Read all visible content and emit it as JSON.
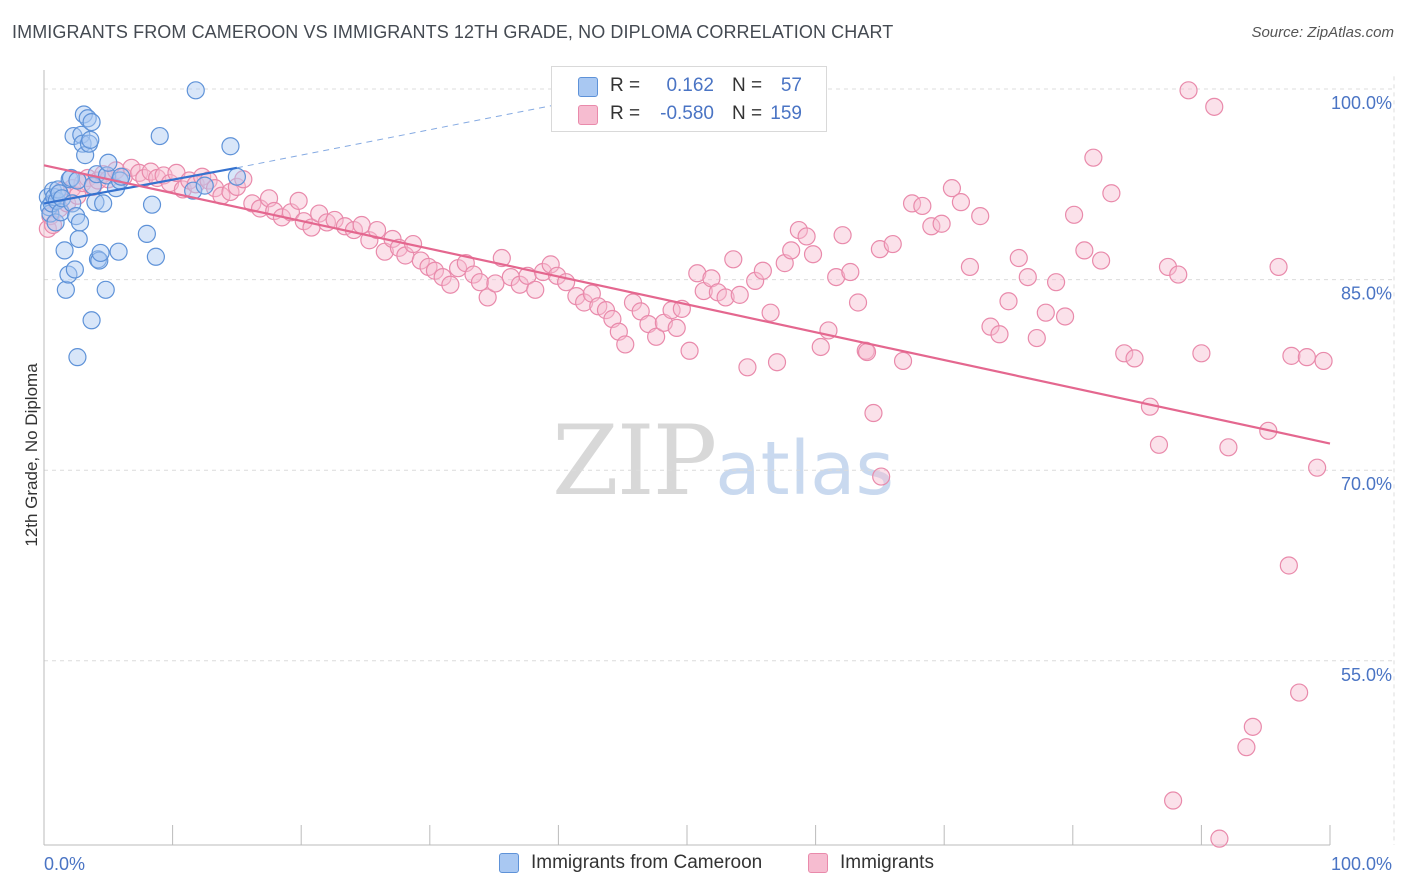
{
  "title": "IMMIGRANTS FROM CAMEROON VS IMMIGRANTS 12TH GRADE, NO DIPLOMA CORRELATION CHART",
  "source": "Source: ZipAtlas.com",
  "watermark": {
    "zip": "ZIP",
    "atlas": "atlas"
  },
  "legend_top": {
    "rows": [
      {
        "r_label": "R =",
        "r_value": "0.162",
        "n_label": "N =",
        "n_value": "57"
      },
      {
        "r_label": "R =",
        "r_value": "-0.580",
        "n_label": "N =",
        "n_value": "159"
      }
    ]
  },
  "legend_bottom": [
    {
      "label": "Immigrants from Cameroon"
    },
    {
      "label": "Immigrants"
    }
  ],
  "colors": {
    "blue_fill": "#a9c8f2",
    "blue_stroke": "#5e92d8",
    "blue_line": "#3572cf",
    "pink_fill": "#f6bcd0",
    "pink_stroke": "#e98aab",
    "pink_line": "#e4678f",
    "axis_text": "#4a74c4",
    "grid": "#dcdcdc"
  },
  "chart_data": {
    "type": "scatter",
    "title": "IMMIGRANTS FROM CAMEROON VS IMMIGRANTS 12TH GRADE, NO DIPLOMA CORRELATION CHART",
    "xlabel": "",
    "ylabel": "12th Grade, No Diploma",
    "xlim": [
      0,
      100
    ],
    "ylim": [
      40.5,
      101.5
    ],
    "x_tick_labels": [
      "0.0%",
      "100.0%"
    ],
    "y_ticks": [
      {
        "value": 100,
        "label": "100.0%"
      },
      {
        "value": 85,
        "label": "85.0%"
      },
      {
        "value": 70,
        "label": "70.0%"
      },
      {
        "value": 55,
        "label": "55.0%"
      }
    ],
    "grid": true,
    "legend_placement": "top-center",
    "series": [
      {
        "name": "Immigrants from Cameroon",
        "R": 0.162,
        "N": 57,
        "trend": {
          "x": [
            0,
            15
          ],
          "y": [
            91.0,
            93.8
          ]
        },
        "trend_extension": {
          "x": [
            15,
            42
          ],
          "y": [
            93.8,
            99.2
          ]
        },
        "points": [
          [
            0.3,
            91.5
          ],
          [
            0.4,
            90.7
          ],
          [
            0.5,
            90.2
          ],
          [
            0.6,
            91.0
          ],
          [
            0.7,
            92.0
          ],
          [
            0.8,
            91.5
          ],
          [
            0.9,
            89.5
          ],
          [
            1.0,
            91.2
          ],
          [
            1.1,
            92.1
          ],
          [
            1.2,
            91.8
          ],
          [
            1.3,
            90.3
          ],
          [
            1.4,
            91.4
          ],
          [
            1.6,
            87.3
          ],
          [
            1.7,
            84.2
          ],
          [
            1.9,
            85.4
          ],
          [
            2.0,
            92.9
          ],
          [
            2.1,
            93.0
          ],
          [
            2.2,
            91.0
          ],
          [
            2.3,
            96.3
          ],
          [
            2.4,
            85.8
          ],
          [
            2.5,
            90.0
          ],
          [
            2.6,
            92.8
          ],
          [
            2.7,
            88.2
          ],
          [
            2.8,
            89.5
          ],
          [
            2.9,
            96.4
          ],
          [
            3.0,
            95.7
          ],
          [
            3.1,
            98.0
          ],
          [
            3.2,
            94.8
          ],
          [
            3.4,
            97.7
          ],
          [
            3.5,
            95.7
          ],
          [
            3.6,
            96.0
          ],
          [
            3.7,
            97.4
          ],
          [
            3.8,
            92.4
          ],
          [
            4.0,
            91.1
          ],
          [
            4.1,
            93.3
          ],
          [
            4.2,
            86.6
          ],
          [
            4.3,
            86.5
          ],
          [
            4.4,
            87.1
          ],
          [
            4.6,
            91.0
          ],
          [
            4.8,
            84.2
          ],
          [
            4.9,
            93.2
          ],
          [
            5.0,
            94.2
          ],
          [
            2.6,
            78.9
          ],
          [
            3.7,
            81.8
          ],
          [
            5.6,
            92.2
          ],
          [
            5.9,
            92.8
          ],
          [
            6.0,
            93.1
          ],
          [
            5.8,
            87.2
          ],
          [
            8.0,
            88.6
          ],
          [
            8.4,
            90.9
          ],
          [
            8.7,
            86.8
          ],
          [
            9.0,
            96.3
          ],
          [
            11.8,
            99.9
          ],
          [
            11.6,
            92.0
          ],
          [
            14.5,
            95.5
          ],
          [
            15.0,
            93.1
          ],
          [
            12.5,
            92.4
          ]
        ]
      },
      {
        "name": "Immigrants",
        "R": -0.58,
        "N": 159,
        "trend": {
          "x": [
            0,
            100
          ],
          "y": [
            94.0,
            72.1
          ]
        },
        "points": [
          [
            0.3,
            89.0
          ],
          [
            0.5,
            90.0
          ],
          [
            0.7,
            89.3
          ],
          [
            0.9,
            91.2
          ],
          [
            1.2,
            90.6
          ],
          [
            1.4,
            92.0
          ],
          [
            1.8,
            91.0
          ],
          [
            2.2,
            92.2
          ],
          [
            2.6,
            91.6
          ],
          [
            3.0,
            92.6
          ],
          [
            3.4,
            93.0
          ],
          [
            3.8,
            92.3
          ],
          [
            4.2,
            92.8
          ],
          [
            4.6,
            93.3
          ],
          [
            5.0,
            92.9
          ],
          [
            5.6,
            93.6
          ],
          [
            6.2,
            93.1
          ],
          [
            6.8,
            93.8
          ],
          [
            7.4,
            93.4
          ],
          [
            7.8,
            93.0
          ],
          [
            8.3,
            93.5
          ],
          [
            8.8,
            93.0
          ],
          [
            9.3,
            93.2
          ],
          [
            9.8,
            92.6
          ],
          [
            10.3,
            93.4
          ],
          [
            10.8,
            92.1
          ],
          [
            11.3,
            92.8
          ],
          [
            11.8,
            92.5
          ],
          [
            12.3,
            93.1
          ],
          [
            12.8,
            92.8
          ],
          [
            13.3,
            92.2
          ],
          [
            13.8,
            91.6
          ],
          [
            14.5,
            91.9
          ],
          [
            15.0,
            92.3
          ],
          [
            15.5,
            92.9
          ],
          [
            16.2,
            91.0
          ],
          [
            16.8,
            90.6
          ],
          [
            17.5,
            91.4
          ],
          [
            17.9,
            90.4
          ],
          [
            18.5,
            89.9
          ],
          [
            19.2,
            90.3
          ],
          [
            19.8,
            91.2
          ],
          [
            20.2,
            89.6
          ],
          [
            20.8,
            89.1
          ],
          [
            21.4,
            90.2
          ],
          [
            22.0,
            89.5
          ],
          [
            22.6,
            89.7
          ],
          [
            23.4,
            89.2
          ],
          [
            24.1,
            88.9
          ],
          [
            24.7,
            89.3
          ],
          [
            25.3,
            88.1
          ],
          [
            25.9,
            88.9
          ],
          [
            26.5,
            87.2
          ],
          [
            27.1,
            88.2
          ],
          [
            27.6,
            87.5
          ],
          [
            28.1,
            86.9
          ],
          [
            28.7,
            87.8
          ],
          [
            29.3,
            86.5
          ],
          [
            29.9,
            86.0
          ],
          [
            30.4,
            85.7
          ],
          [
            31.0,
            85.2
          ],
          [
            31.6,
            84.6
          ],
          [
            32.2,
            85.9
          ],
          [
            32.8,
            86.3
          ],
          [
            33.4,
            85.4
          ],
          [
            33.9,
            84.8
          ],
          [
            34.5,
            83.6
          ],
          [
            35.1,
            84.7
          ],
          [
            35.6,
            86.7
          ],
          [
            36.3,
            85.2
          ],
          [
            37.0,
            84.6
          ],
          [
            37.6,
            85.3
          ],
          [
            38.2,
            84.2
          ],
          [
            38.8,
            85.6
          ],
          [
            39.4,
            86.2
          ],
          [
            39.9,
            85.3
          ],
          [
            40.6,
            84.8
          ],
          [
            41.4,
            83.7
          ],
          [
            42.0,
            83.2
          ],
          [
            42.6,
            83.9
          ],
          [
            43.1,
            82.9
          ],
          [
            43.7,
            82.6
          ],
          [
            44.2,
            81.9
          ],
          [
            44.7,
            80.9
          ],
          [
            45.2,
            79.9
          ],
          [
            45.8,
            83.2
          ],
          [
            46.4,
            82.5
          ],
          [
            47.0,
            81.5
          ],
          [
            47.6,
            80.5
          ],
          [
            48.2,
            81.6
          ],
          [
            48.8,
            82.6
          ],
          [
            49.2,
            81.2
          ],
          [
            49.6,
            82.7
          ],
          [
            50.2,
            79.4
          ],
          [
            50.8,
            85.5
          ],
          [
            51.3,
            84.1
          ],
          [
            51.9,
            85.1
          ],
          [
            52.4,
            84.0
          ],
          [
            53.0,
            83.6
          ],
          [
            53.6,
            86.6
          ],
          [
            54.1,
            83.8
          ],
          [
            54.7,
            78.1
          ],
          [
            55.3,
            84.9
          ],
          [
            55.9,
            85.7
          ],
          [
            56.5,
            82.4
          ],
          [
            57.0,
            78.5
          ],
          [
            57.6,
            86.3
          ],
          [
            58.1,
            87.3
          ],
          [
            58.7,
            88.9
          ],
          [
            59.3,
            88.4
          ],
          [
            59.8,
            87.0
          ],
          [
            60.4,
            79.7
          ],
          [
            61.0,
            81.0
          ],
          [
            61.6,
            85.2
          ],
          [
            62.1,
            88.5
          ],
          [
            62.7,
            85.6
          ],
          [
            63.3,
            83.2
          ],
          [
            63.9,
            79.4
          ],
          [
            64.5,
            74.5
          ],
          [
            65.1,
            69.5
          ],
          [
            64.0,
            79.3
          ],
          [
            65.0,
            87.4
          ],
          [
            66.0,
            87.8
          ],
          [
            66.8,
            78.6
          ],
          [
            67.5,
            91.0
          ],
          [
            68.3,
            90.8
          ],
          [
            69.0,
            89.2
          ],
          [
            69.8,
            89.4
          ],
          [
            70.6,
            92.2
          ],
          [
            71.3,
            91.1
          ],
          [
            72.0,
            86.0
          ],
          [
            72.8,
            90.0
          ],
          [
            73.6,
            81.3
          ],
          [
            74.3,
            80.7
          ],
          [
            75.0,
            83.3
          ],
          [
            75.8,
            86.7
          ],
          [
            76.5,
            85.2
          ],
          [
            77.2,
            80.4
          ],
          [
            77.9,
            82.4
          ],
          [
            78.7,
            84.8
          ],
          [
            79.4,
            82.1
          ],
          [
            80.1,
            90.1
          ],
          [
            80.9,
            87.3
          ],
          [
            81.6,
            94.6
          ],
          [
            82.2,
            86.5
          ],
          [
            83.0,
            91.8
          ],
          [
            84.0,
            79.2
          ],
          [
            84.8,
            78.8
          ],
          [
            86.0,
            75.0
          ],
          [
            86.7,
            72.0
          ],
          [
            87.4,
            86.0
          ],
          [
            88.2,
            85.4
          ],
          [
            89.0,
            99.9
          ],
          [
            90.0,
            79.2
          ],
          [
            91.0,
            98.6
          ],
          [
            92.1,
            71.8
          ],
          [
            93.5,
            48.2
          ],
          [
            94.0,
            49.8
          ],
          [
            96.0,
            86.0
          ],
          [
            97.0,
            79.0
          ],
          [
            98.2,
            78.9
          ],
          [
            99.0,
            70.2
          ],
          [
            95.2,
            73.1
          ],
          [
            96.8,
            62.5
          ],
          [
            97.6,
            52.5
          ],
          [
            87.8,
            44.0
          ],
          [
            91.4,
            41.0
          ],
          [
            99.5,
            78.6
          ]
        ]
      }
    ]
  }
}
